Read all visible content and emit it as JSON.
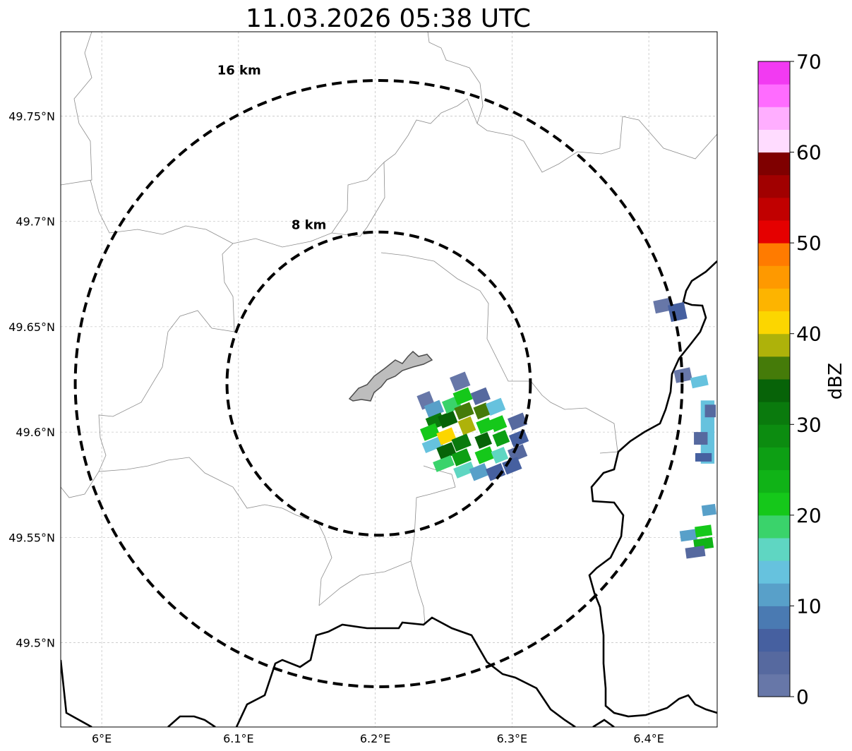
{
  "title": "11.03.2026 05:38 UTC",
  "map": {
    "lon_range": [
      5.97,
      6.45
    ],
    "lat_range": [
      49.46,
      49.79
    ],
    "x_ticks": [
      {
        "value": 6.0,
        "label": "6°E"
      },
      {
        "value": 6.1,
        "label": "6.1°E"
      },
      {
        "value": 6.2,
        "label": "6.2°E"
      },
      {
        "value": 6.3,
        "label": "6.3°E"
      },
      {
        "value": 6.4,
        "label": "6.4°E"
      }
    ],
    "y_ticks": [
      {
        "value": 49.5,
        "label": "49.5°N"
      },
      {
        "value": 49.55,
        "label": "49.55°N"
      },
      {
        "value": 49.6,
        "label": "49.6°N"
      },
      {
        "value": 49.65,
        "label": "49.65°N"
      },
      {
        "value": 49.7,
        "label": "49.7°N"
      },
      {
        "value": 49.75,
        "label": "49.75°N"
      }
    ],
    "grid": true,
    "radar_center": {
      "lon": 6.2025,
      "lat": 49.623
    },
    "range_rings": [
      {
        "radius_km": 8,
        "label": "8 km"
      },
      {
        "radius_km": 16,
        "label": "16 km"
      }
    ],
    "colors": {
      "grid": "#b0b0b0",
      "admin_border": "#8c8c8c",
      "country_border": "#000000",
      "lake_fill": "#bdbdbd",
      "lake_edge": "#4d4d4d"
    }
  },
  "colorbar": {
    "label": "dBZ",
    "min": 0,
    "max": 70,
    "step": 2.5,
    "ticks": [
      "0",
      "10",
      "20",
      "30",
      "40",
      "50",
      "60",
      "70"
    ],
    "colors": [
      "#6777a8",
      "#56699f",
      "#4660a0",
      "#4a7ab2",
      "#58a0c9",
      "#66c2de",
      "#5fd6c2",
      "#3ad36b",
      "#15c81a",
      "#10b317",
      "#0d9f14",
      "#0c8c10",
      "#0a7a0d",
      "#076308",
      "#457b09",
      "#aeb20a",
      "#fcd600",
      "#fdb400",
      "#fe9900",
      "#ff7b00",
      "#e50000",
      "#c10000",
      "#a10000",
      "#7f0000",
      "#ffdcff",
      "#ffaeff",
      "#ff6cff",
      "#f23af2"
    ]
  },
  "radar_echoes": [
    {
      "lon": 6.237,
      "lat": 49.615,
      "w": 0.01,
      "h": 0.007,
      "dbz": 1,
      "rot": -22
    },
    {
      "lon": 6.243,
      "lat": 49.611,
      "w": 0.012,
      "h": 0.006,
      "dbz": 12,
      "rot": -22
    },
    {
      "lon": 6.244,
      "lat": 49.605,
      "w": 0.012,
      "h": 0.006,
      "dbz": 31,
      "rot": -22
    },
    {
      "lon": 6.24,
      "lat": 49.6,
      "w": 0.012,
      "h": 0.006,
      "dbz": 22,
      "rot": -22
    },
    {
      "lon": 6.242,
      "lat": 49.594,
      "w": 0.014,
      "h": 0.005,
      "dbz": 14,
      "rot": -22
    },
    {
      "lon": 6.252,
      "lat": 49.598,
      "w": 0.012,
      "h": 0.006,
      "dbz": 40,
      "rot": -22
    },
    {
      "lon": 6.253,
      "lat": 49.606,
      "w": 0.012,
      "h": 0.006,
      "dbz": 33,
      "rot": -22
    },
    {
      "lon": 6.256,
      "lat": 49.613,
      "w": 0.012,
      "h": 0.006,
      "dbz": 18,
      "rot": -22
    },
    {
      "lon": 6.252,
      "lat": 49.591,
      "w": 0.012,
      "h": 0.006,
      "dbz": 33,
      "rot": -22
    },
    {
      "lon": 6.25,
      "lat": 49.585,
      "w": 0.014,
      "h": 0.005,
      "dbz": 18,
      "rot": -22
    },
    {
      "lon": 6.262,
      "lat": 49.624,
      "w": 0.012,
      "h": 0.007,
      "dbz": 2,
      "rot": -22
    },
    {
      "lon": 6.264,
      "lat": 49.617,
      "w": 0.012,
      "h": 0.006,
      "dbz": 20,
      "rot": -22
    },
    {
      "lon": 6.265,
      "lat": 49.61,
      "w": 0.012,
      "h": 0.006,
      "dbz": 35,
      "rot": -22
    },
    {
      "lon": 6.267,
      "lat": 49.603,
      "w": 0.01,
      "h": 0.007,
      "dbz": 38,
      "rot": -22
    },
    {
      "lon": 6.263,
      "lat": 49.595,
      "w": 0.012,
      "h": 0.006,
      "dbz": 30,
      "rot": -22
    },
    {
      "lon": 6.263,
      "lat": 49.588,
      "w": 0.012,
      "h": 0.006,
      "dbz": 27,
      "rot": -22
    },
    {
      "lon": 6.265,
      "lat": 49.582,
      "w": 0.014,
      "h": 0.005,
      "dbz": 16,
      "rot": -22
    },
    {
      "lon": 6.277,
      "lat": 49.617,
      "w": 0.012,
      "h": 0.006,
      "dbz": 3,
      "rot": -22
    },
    {
      "lon": 6.278,
      "lat": 49.61,
      "w": 0.01,
      "h": 0.006,
      "dbz": 37,
      "rot": -22
    },
    {
      "lon": 6.28,
      "lat": 49.603,
      "w": 0.01,
      "h": 0.006,
      "dbz": 22,
      "rot": -22
    },
    {
      "lon": 6.279,
      "lat": 49.596,
      "w": 0.01,
      "h": 0.006,
      "dbz": 33,
      "rot": -22
    },
    {
      "lon": 6.28,
      "lat": 49.589,
      "w": 0.012,
      "h": 0.006,
      "dbz": 20,
      "rot": -22
    },
    {
      "lon": 6.276,
      "lat": 49.581,
      "w": 0.012,
      "h": 0.006,
      "dbz": 12,
      "rot": -22
    },
    {
      "lon": 6.288,
      "lat": 49.612,
      "w": 0.012,
      "h": 0.006,
      "dbz": 14,
      "rot": -22
    },
    {
      "lon": 6.29,
      "lat": 49.604,
      "w": 0.01,
      "h": 0.006,
      "dbz": 21,
      "rot": -22
    },
    {
      "lon": 6.292,
      "lat": 49.597,
      "w": 0.01,
      "h": 0.006,
      "dbz": 25,
      "rot": -22
    },
    {
      "lon": 6.291,
      "lat": 49.589,
      "w": 0.01,
      "h": 0.006,
      "dbz": 17,
      "rot": -22
    },
    {
      "lon": 6.288,
      "lat": 49.581,
      "w": 0.012,
      "h": 0.006,
      "dbz": 6,
      "rot": -22
    },
    {
      "lon": 6.304,
      "lat": 49.605,
      "w": 0.012,
      "h": 0.006,
      "dbz": 4,
      "rot": -22
    },
    {
      "lon": 6.305,
      "lat": 49.597,
      "w": 0.012,
      "h": 0.006,
      "dbz": 6,
      "rot": -22
    },
    {
      "lon": 6.304,
      "lat": 49.59,
      "w": 0.012,
      "h": 0.006,
      "dbz": 3,
      "rot": -22
    },
    {
      "lon": 6.3,
      "lat": 49.584,
      "w": 0.012,
      "h": 0.006,
      "dbz": 5,
      "rot": -22
    },
    {
      "lon": 6.41,
      "lat": 49.66,
      "w": 0.012,
      "h": 0.006,
      "dbz": 2,
      "rot": -12
    },
    {
      "lon": 6.421,
      "lat": 49.657,
      "w": 0.012,
      "h": 0.008,
      "dbz": 5,
      "rot": -12
    },
    {
      "lon": 6.425,
      "lat": 49.627,
      "w": 0.012,
      "h": 0.006,
      "dbz": 2,
      "rot": -12
    },
    {
      "lon": 6.437,
      "lat": 49.624,
      "w": 0.012,
      "h": 0.005,
      "dbz": 13,
      "rot": -12
    },
    {
      "lon": 6.443,
      "lat": 49.6,
      "w": 0.01,
      "h": 0.03,
      "dbz": 13,
      "rot": 0
    },
    {
      "lon": 6.438,
      "lat": 49.597,
      "w": 0.01,
      "h": 0.006,
      "dbz": 4,
      "rot": 0
    },
    {
      "lon": 6.445,
      "lat": 49.61,
      "w": 0.008,
      "h": 0.006,
      "dbz": 3,
      "rot": 0
    },
    {
      "lon": 6.44,
      "lat": 49.588,
      "w": 0.012,
      "h": 0.004,
      "dbz": 6,
      "rot": 0
    },
    {
      "lon": 6.429,
      "lat": 49.551,
      "w": 0.012,
      "h": 0.005,
      "dbz": 10,
      "rot": -8
    },
    {
      "lon": 6.44,
      "lat": 49.553,
      "w": 0.012,
      "h": 0.005,
      "dbz": 20,
      "rot": -8
    },
    {
      "lon": 6.44,
      "lat": 49.547,
      "w": 0.014,
      "h": 0.005,
      "dbz": 24,
      "rot": -8
    },
    {
      "lon": 6.434,
      "lat": 49.543,
      "w": 0.014,
      "h": 0.005,
      "dbz": 3,
      "rot": -8
    },
    {
      "lon": 6.444,
      "lat": 49.563,
      "w": 0.01,
      "h": 0.005,
      "dbz": 11,
      "rot": -8
    }
  ]
}
